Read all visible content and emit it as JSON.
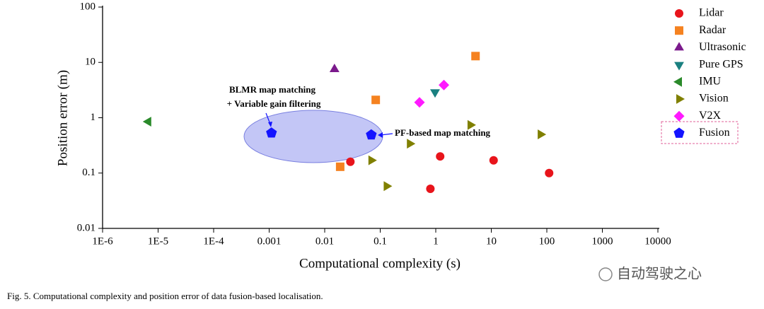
{
  "chart_data": {
    "type": "scatter",
    "x_label": "Computational complexity (s)",
    "y_label": "Position error (m)",
    "x_log": true,
    "y_log": true,
    "xlim": [
      1e-06,
      10000
    ],
    "xticks": [
      {
        "value": 1e-06,
        "label": "1E-6"
      },
      {
        "value": 1e-05,
        "label": "1E-5"
      },
      {
        "value": 0.0001,
        "label": "1E-4"
      },
      0.001,
      0.01,
      0.1,
      1,
      10,
      100,
      1000,
      10000
    ],
    "ylim": [
      0.01,
      100
    ],
    "yticks": [
      0.01,
      0.1,
      1,
      10,
      100
    ],
    "legend": "right",
    "series": [
      {
        "name": "Lidar",
        "color": "#e8141b",
        "marker": "circle",
        "x": [
          0.029,
          1.2,
          11,
          110,
          0.8
        ],
        "values": [
          0.16,
          0.2,
          0.17,
          0.1,
          0.052
        ]
      },
      {
        "name": "Radar",
        "color": "#f58220",
        "marker": "square",
        "x": [
          5.2,
          0.083,
          0.019
        ],
        "values": [
          13,
          2.1,
          0.13
        ]
      },
      {
        "name": "Ultrasonic",
        "color": "#7b1a8c",
        "marker": "triangle-up",
        "x": [
          0.015
        ],
        "values": [
          7.5
        ]
      },
      {
        "name": "Pure GPS",
        "color": "#1a8080",
        "marker": "triangle-down",
        "x": [
          0.97
        ],
        "values": [
          2.9
        ]
      },
      {
        "name": "IMU",
        "color": "#2a8a2a",
        "marker": "triangle-left",
        "x": [
          6.7e-06
        ],
        "values": [
          0.85
        ]
      },
      {
        "name": "Vision",
        "color": "#808000",
        "marker": "triangle-right",
        "x": [
          4.2,
          77,
          0.34,
          0.069,
          0.13
        ],
        "values": [
          0.74,
          0.5,
          0.34,
          0.17,
          0.058
        ]
      },
      {
        "name": "V2X",
        "color": "#ff1aff",
        "marker": "diamond",
        "x": [
          1.4,
          0.51
        ],
        "values": [
          3.9,
          1.9
        ]
      },
      {
        "name": "Fusion",
        "color": "#1414ff",
        "marker": "pentagon",
        "x": [
          0.0011,
          0.069
        ],
        "values": [
          0.53,
          0.49
        ]
      }
    ],
    "annotations": [
      "BLMR map matching",
      "+ Variable gain filtering",
      "PF-based map matching"
    ]
  },
  "caption": "Fig. 5.   Computational complexity and position error of data fusion-based localisation.",
  "watermark": "自动驾驶之心"
}
